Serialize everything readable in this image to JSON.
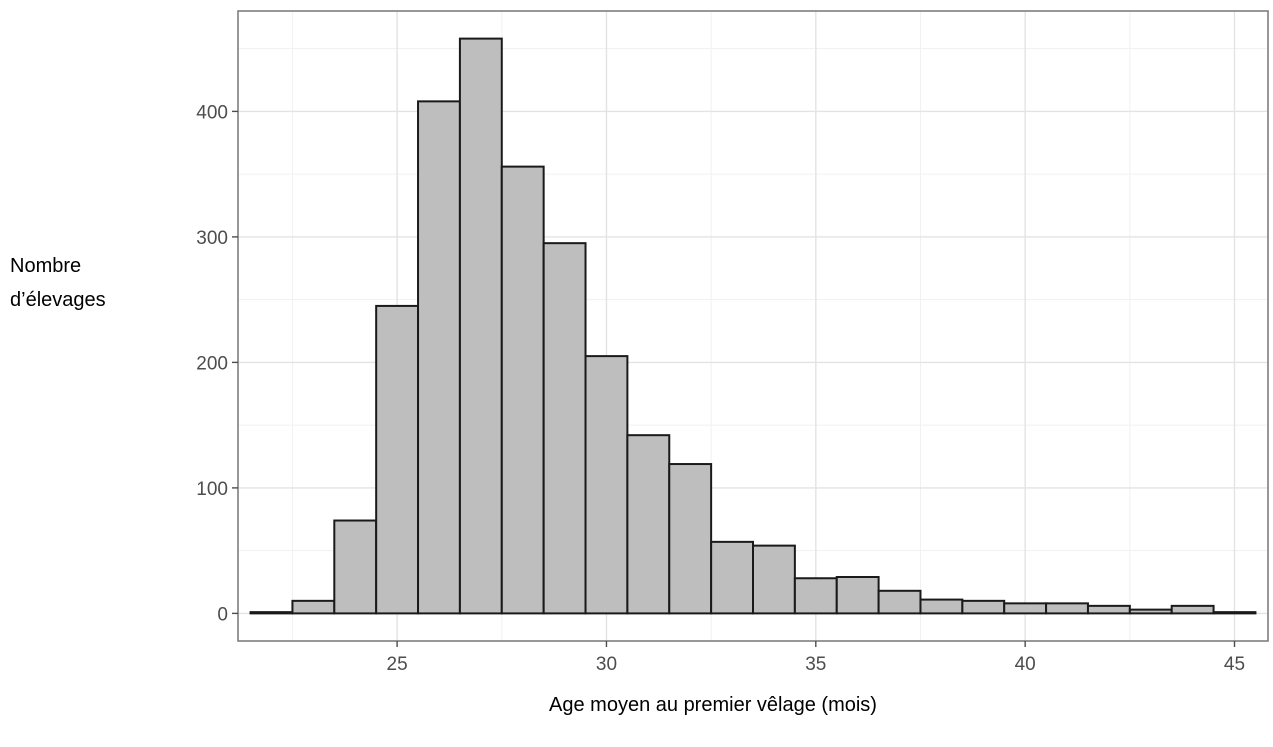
{
  "chart_data": {
    "type": "bar",
    "xlabel": "Age moyen au premier vêlage (mois)",
    "ylabel_lines": [
      "Nombre",
      "d’élevages"
    ],
    "x_ticks": [
      25,
      30,
      35,
      40,
      45
    ],
    "y_ticks": [
      0,
      100,
      200,
      300,
      400
    ],
    "xlim": [
      21.2,
      45.8
    ],
    "ylim": [
      -22,
      480
    ],
    "bin_width": 1,
    "bins": [
      {
        "x": 22,
        "count": 1
      },
      {
        "x": 23,
        "count": 10
      },
      {
        "x": 24,
        "count": 74
      },
      {
        "x": 25,
        "count": 245
      },
      {
        "x": 26,
        "count": 408
      },
      {
        "x": 27,
        "count": 458
      },
      {
        "x": 28,
        "count": 356
      },
      {
        "x": 29,
        "count": 295
      },
      {
        "x": 30,
        "count": 205
      },
      {
        "x": 31,
        "count": 142
      },
      {
        "x": 32,
        "count": 119
      },
      {
        "x": 33,
        "count": 57
      },
      {
        "x": 34,
        "count": 54
      },
      {
        "x": 35,
        "count": 28
      },
      {
        "x": 36,
        "count": 29
      },
      {
        "x": 37,
        "count": 18
      },
      {
        "x": 38,
        "count": 11
      },
      {
        "x": 39,
        "count": 10
      },
      {
        "x": 40,
        "count": 8
      },
      {
        "x": 41,
        "count": 8
      },
      {
        "x": 42,
        "count": 6
      },
      {
        "x": 43,
        "count": 3
      },
      {
        "x": 44,
        "count": 6
      },
      {
        "x": 45,
        "count": 1
      }
    ],
    "grid": true,
    "colors": {
      "bar_fill": "#bebebe",
      "bar_outline": "#1a1a1a",
      "grid": "#e3e3e3",
      "panel_border": "#7f7f7f"
    }
  }
}
